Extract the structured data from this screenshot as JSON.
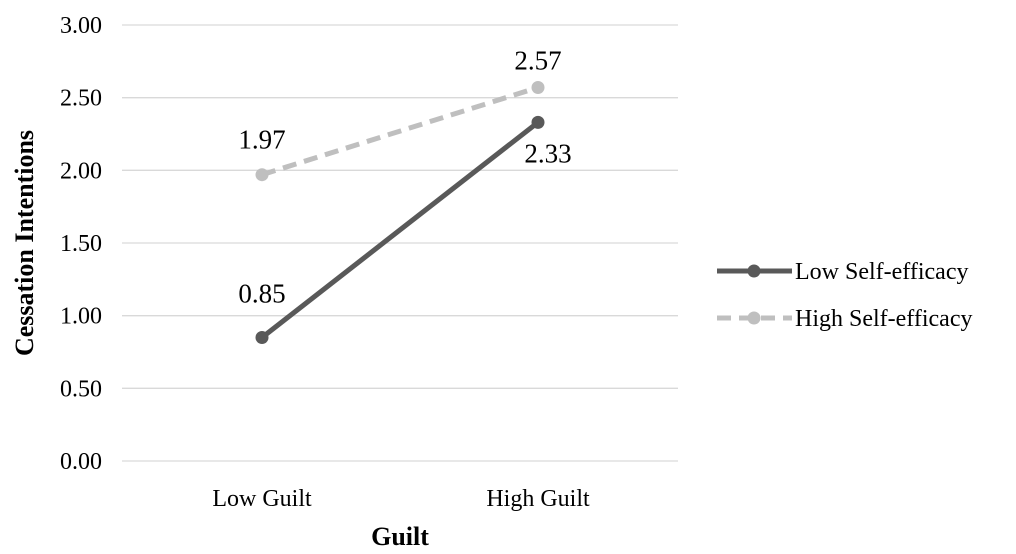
{
  "chart_data": {
    "type": "line",
    "title": "",
    "xlabel": "Guilt",
    "ylabel": "Cessation Intentions",
    "categories": [
      "Low Guilt",
      "High Guilt"
    ],
    "ylim": [
      0,
      3
    ],
    "yticks": [
      0,
      0.5,
      1,
      1.5,
      2,
      2.5,
      3
    ],
    "ytick_labels": [
      "0.00",
      "0.50",
      "1.00",
      "1.50",
      "2.00",
      "2.50",
      "3.00"
    ],
    "grid": true,
    "legend_position": "right",
    "series": [
      {
        "name": "Low Self-efficacy",
        "values": [
          0.85,
          2.33
        ],
        "labels": [
          "0.85",
          "2.33"
        ],
        "color": "#595959",
        "style": "solid"
      },
      {
        "name": "High Self-efficacy",
        "values": [
          1.97,
          2.57
        ],
        "labels": [
          "1.97",
          "2.57"
        ],
        "color": "#bfbfbf",
        "style": "dashed"
      }
    ]
  },
  "colors": {
    "gridline": "#d9d9d9",
    "text": "#000000"
  }
}
